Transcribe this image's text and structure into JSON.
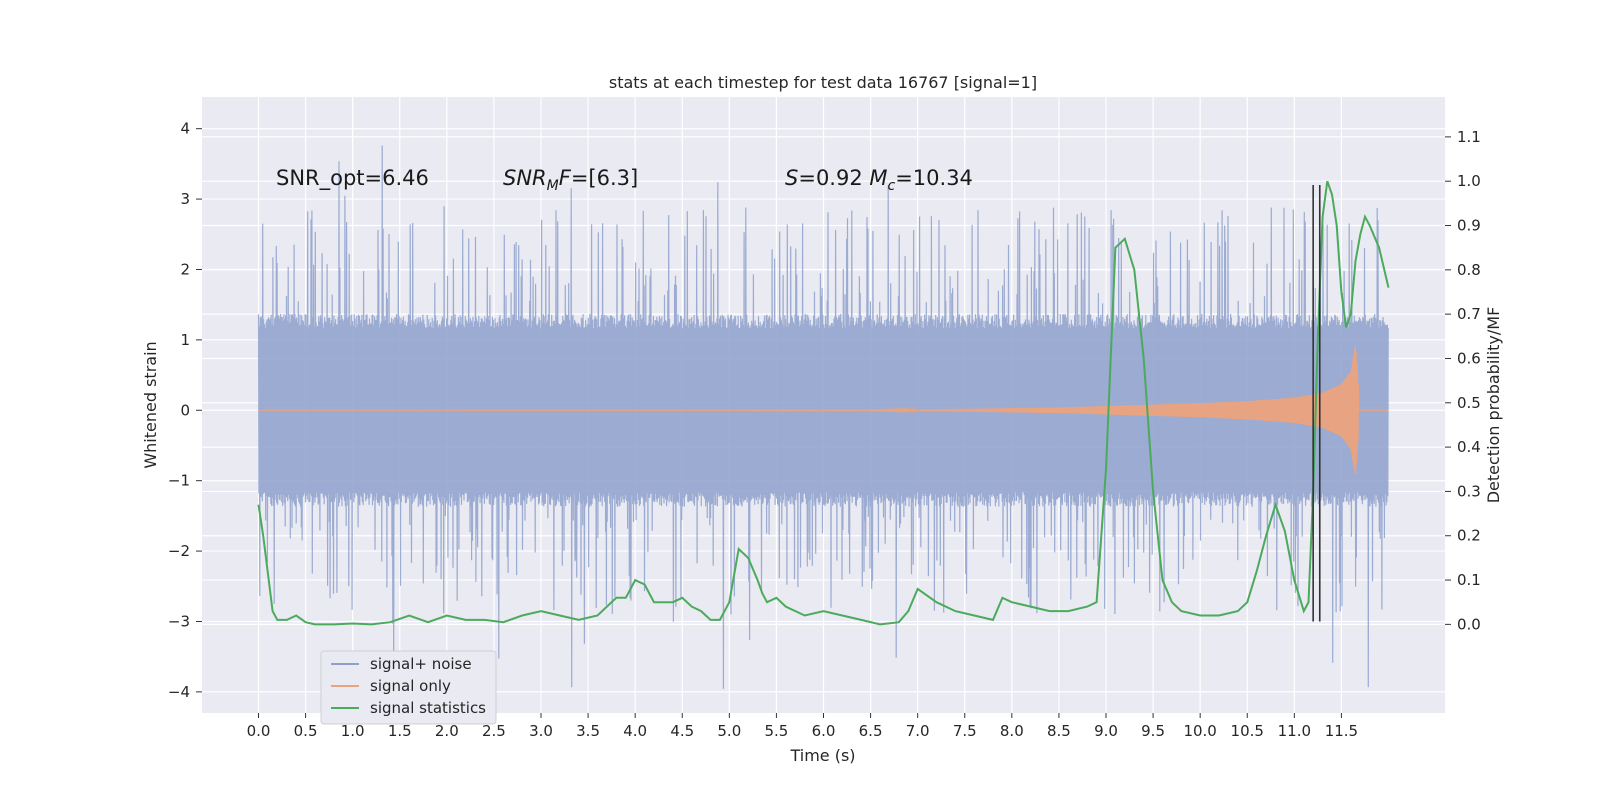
{
  "chart_data": {
    "type": "line",
    "title": "stats at each timestep for test data 16767 [signal=1]",
    "xlabel": "Time (s)",
    "ylabel": "Whitened strain",
    "y2label": "Detection probability/MF",
    "xlim": [
      -0.6,
      12.6
    ],
    "ylim": [
      -4.3,
      4.45
    ],
    "y2lim": [
      -0.2,
      1.19
    ],
    "x_ticks": [
      0.0,
      0.5,
      1.0,
      1.5,
      2.0,
      2.5,
      3.0,
      3.5,
      4.0,
      4.5,
      5.0,
      5.5,
      6.0,
      6.5,
      7.0,
      7.5,
      8.0,
      8.5,
      9.0,
      9.5,
      10.0,
      10.5,
      11.0,
      11.5
    ],
    "x_tick_labels": [
      "0.0",
      "0.5",
      "1.0",
      "1.5",
      "2.0",
      "2.5",
      "3.0",
      "3.5",
      "4.0",
      "4.5",
      "5.0",
      "5.5",
      "6.0",
      "6.5",
      "7.0",
      "7.5",
      "8.0",
      "8.5",
      "9.0",
      "9.5",
      "10.0",
      "10.5",
      "11.0",
      "11.5"
    ],
    "y_ticks": [
      -4,
      -3,
      -2,
      -1,
      0,
      1,
      2,
      3,
      4
    ],
    "y_tick_labels": [
      "−4",
      "−3",
      "−2",
      "−1",
      "0",
      "1",
      "2",
      "3",
      "4"
    ],
    "y2_ticks": [
      0.0,
      0.1,
      0.2,
      0.3,
      0.4,
      0.5,
      0.6,
      0.7,
      0.8,
      0.9,
      1.0,
      1.1
    ],
    "y2_tick_labels": [
      "0.0",
      "0.1",
      "0.2",
      "0.3",
      "0.4",
      "0.5",
      "0.6",
      "0.7",
      "0.8",
      "0.9",
      "1.0",
      "1.1"
    ],
    "grid": true,
    "legend_position": "bottom-left",
    "legend": [
      {
        "name": "signal+ noise",
        "color": "#8da0cb"
      },
      {
        "name": "signal only",
        "color": "#e8a382"
      },
      {
        "name": "signal statistics",
        "color": "#4caa5c"
      }
    ],
    "annotations": [
      {
        "text": "SNR_opt=6.46",
        "x": 0.2,
        "y": 3.3
      },
      {
        "text": "SNR_MF=[6.3]",
        "x": 2.6,
        "y": 3.3
      },
      {
        "text": "S=0.92   M_c=10.34",
        "x": 5.6,
        "y": 3.3
      }
    ],
    "noise_series": {
      "name": "signal+ noise",
      "x_range": [
        0.0,
        12.0
      ],
      "core_amplitude": 1.37,
      "typical_peak_range": [
        1.5,
        2.9
      ],
      "max": 4.1,
      "min": -3.9
    },
    "signal_series": {
      "name": "signal only",
      "x": [
        0.0,
        6.5,
        7.5,
        8.5,
        9.0,
        9.5,
        10.0,
        10.5,
        11.0,
        11.3,
        11.5,
        11.6,
        11.65,
        11.7,
        11.75,
        12.0
      ],
      "envelope": [
        0.0,
        0.003,
        0.02,
        0.04,
        0.06,
        0.08,
        0.1,
        0.13,
        0.18,
        0.25,
        0.37,
        0.55,
        0.95,
        0.0,
        0.0,
        0.0
      ]
    },
    "stat_series": {
      "name": "signal statistics",
      "axis": "right",
      "x": [
        0.0,
        0.05,
        0.15,
        0.2,
        0.3,
        0.4,
        0.5,
        0.6,
        0.8,
        1.0,
        1.2,
        1.4,
        1.6,
        1.8,
        2.0,
        2.2,
        2.4,
        2.6,
        2.8,
        3.0,
        3.2,
        3.4,
        3.6,
        3.8,
        3.9,
        4.0,
        4.1,
        4.2,
        4.4,
        4.5,
        4.6,
        4.7,
        4.8,
        4.9,
        5.0,
        5.1,
        5.2,
        5.3,
        5.35,
        5.4,
        5.5,
        5.6,
        5.8,
        6.0,
        6.2,
        6.4,
        6.6,
        6.8,
        6.9,
        7.0,
        7.2,
        7.4,
        7.6,
        7.8,
        7.9,
        8.0,
        8.2,
        8.4,
        8.6,
        8.8,
        8.9,
        9.0,
        9.05,
        9.1,
        9.2,
        9.3,
        9.4,
        9.5,
        9.6,
        9.7,
        9.8,
        10.0,
        10.2,
        10.4,
        10.5,
        10.6,
        10.7,
        10.8,
        10.9,
        11.0,
        11.1,
        11.15,
        11.2,
        11.25,
        11.3,
        11.35,
        11.4,
        11.45,
        11.5,
        11.55,
        11.6,
        11.65,
        11.7,
        11.75,
        11.8,
        11.9,
        12.0
      ],
      "values": [
        0.27,
        0.2,
        0.03,
        0.01,
        0.01,
        0.02,
        0.005,
        0.0,
        0.0,
        0.002,
        0.0,
        0.005,
        0.02,
        0.005,
        0.02,
        0.01,
        0.01,
        0.005,
        0.02,
        0.03,
        0.02,
        0.01,
        0.02,
        0.06,
        0.06,
        0.1,
        0.09,
        0.05,
        0.05,
        0.06,
        0.04,
        0.03,
        0.01,
        0.01,
        0.05,
        0.17,
        0.15,
        0.1,
        0.07,
        0.05,
        0.06,
        0.04,
        0.02,
        0.03,
        0.02,
        0.01,
        0.0,
        0.005,
        0.03,
        0.08,
        0.05,
        0.03,
        0.02,
        0.01,
        0.06,
        0.05,
        0.04,
        0.03,
        0.03,
        0.04,
        0.05,
        0.35,
        0.6,
        0.85,
        0.87,
        0.8,
        0.6,
        0.3,
        0.1,
        0.05,
        0.03,
        0.02,
        0.02,
        0.03,
        0.05,
        0.12,
        0.2,
        0.27,
        0.21,
        0.1,
        0.03,
        0.05,
        0.3,
        0.65,
        0.92,
        1.0,
        0.97,
        0.9,
        0.75,
        0.67,
        0.7,
        0.82,
        0.88,
        0.92,
        0.9,
        0.85,
        0.76
      ]
    },
    "vertical_lines": [
      {
        "x": 11.2,
        "y_range": [
          -3.0,
          3.2
        ],
        "color": "#333333"
      },
      {
        "x": 11.27,
        "y_range": [
          -3.0,
          3.2
        ],
        "color": "#333333"
      }
    ]
  }
}
